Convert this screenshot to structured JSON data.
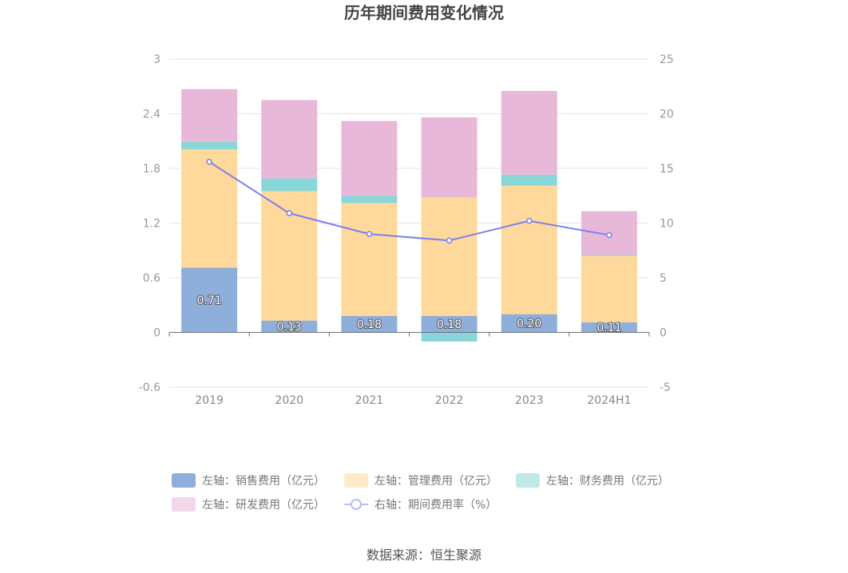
{
  "chart_data": {
    "type": "bar",
    "title": "历年期间费用变化情况",
    "categories": [
      "2019",
      "2020",
      "2021",
      "2022",
      "2023",
      "2024H1"
    ],
    "left_axis": {
      "ticks": [
        "-0.6",
        "0",
        "0.6",
        "1.2",
        "1.8",
        "2.4",
        "3"
      ],
      "ylim": [
        -0.6,
        3
      ]
    },
    "right_axis": {
      "ticks": [
        "-5",
        "0",
        "5",
        "10",
        "15",
        "20",
        "25"
      ],
      "ylim": [
        -5,
        25
      ]
    },
    "series": [
      {
        "name": "左轴：销售费用（亿元）",
        "kind": "bar",
        "stack": "left",
        "color": "#8eaedb",
        "values": [
          0.71,
          0.13,
          0.18,
          0.18,
          0.2,
          0.11
        ],
        "labels": [
          "0.71",
          "0.13",
          "0.18",
          "0.18",
          "0.20",
          "0.11"
        ]
      },
      {
        "name": "左轴：管理费用（亿元）",
        "kind": "bar",
        "stack": "left",
        "color": "#fed99b",
        "values": [
          1.3,
          1.42,
          1.24,
          1.3,
          1.41,
          0.73
        ]
      },
      {
        "name": "左轴：财务费用（亿元）",
        "kind": "bar",
        "stack": "left",
        "color": "#89d6d9",
        "values": [
          0.08,
          0.14,
          0.08,
          -0.1,
          0.12,
          0.01
        ]
      },
      {
        "name": "左轴：研发费用（亿元）",
        "kind": "bar",
        "stack": "left",
        "color": "#e8b8d8",
        "values": [
          0.58,
          0.86,
          0.82,
          0.88,
          0.92,
          0.48
        ]
      },
      {
        "name": "右轴：期间费用率（%）",
        "kind": "line",
        "axis": "right",
        "color": "#7b7ff0",
        "values": [
          15.6,
          10.9,
          9.0,
          8.4,
          10.2,
          8.9
        ]
      }
    ],
    "legend_position": "bottom",
    "grid": true
  },
  "source": "数据来源：恒生聚源"
}
